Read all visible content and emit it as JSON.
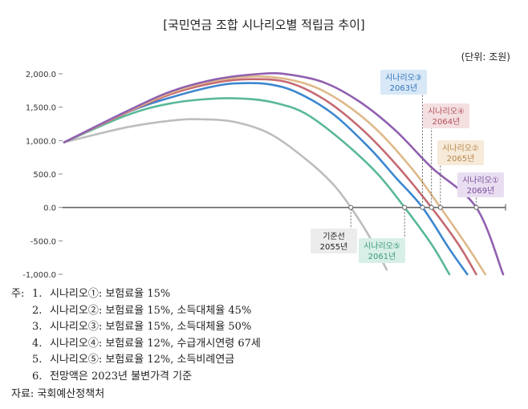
{
  "chart_data": {
    "type": "line",
    "title": "[국민연금 조합 시나리오별 적립금 추이]",
    "unit": "(단위: 조원)",
    "y_ticks": [
      "2,000.0",
      "1,500.0",
      "1,000.0",
      "500.0",
      "0.0",
      "-500.0",
      "-1,000.0"
    ],
    "ylim": [
      -1000,
      2000
    ],
    "xlim": [
      2023,
      2072
    ],
    "grid": false,
    "legend": "none",
    "series": [
      {
        "key": "baseline",
        "color": "#bdbdbd",
        "label_lines": [
          "기준선",
          "2055년"
        ],
        "label_bg": "#ececec",
        "label_color": "#222222",
        "x": [
          2023,
          2030,
          2035,
          2038,
          2042,
          2046,
          2050,
          2053,
          2055,
          2057,
          2059
        ],
        "y": [
          975,
          1200,
          1300,
          1320,
          1280,
          1100,
          720,
          350,
          0,
          -420,
          -930
        ]
      },
      {
        "key": "scenario5",
        "color": "#5ab89a",
        "label_lines": [
          "시나리오⑤",
          "2061년"
        ],
        "label_bg": "#d7efe6",
        "label_color": "#3c9a7c",
        "x": [
          2023,
          2030,
          2035,
          2040,
          2044,
          2047,
          2050,
          2054,
          2058,
          2061,
          2064,
          2066
        ],
        "y": [
          975,
          1380,
          1560,
          1630,
          1620,
          1550,
          1400,
          1000,
          500,
          0,
          -550,
          -1000
        ]
      },
      {
        "key": "scenario3",
        "color": "#3d87cf",
        "label_lines": [
          "시나리오③",
          "2063년"
        ],
        "label_bg": "#d8e8f7",
        "label_color": "#2f72b8",
        "x": [
          2023,
          2030,
          2035,
          2040,
          2043,
          2046,
          2049,
          2053,
          2057,
          2060,
          2063,
          2066,
          2068
        ],
        "y": [
          975,
          1420,
          1650,
          1820,
          1860,
          1840,
          1720,
          1400,
          900,
          450,
          0,
          -620,
          -1000
        ]
      },
      {
        "key": "scenario4",
        "color": "#c46a72",
        "label_lines": [
          "시나리오④",
          "2064년"
        ],
        "label_bg": "#f4dfe1",
        "label_color": "#b2515b",
        "x": [
          2023,
          2030,
          2035,
          2040,
          2044,
          2048,
          2052,
          2056,
          2060,
          2064,
          2067,
          2069
        ],
        "y": [
          975,
          1420,
          1700,
          1870,
          1920,
          1870,
          1620,
          1200,
          650,
          0,
          -550,
          -1000
        ]
      },
      {
        "key": "scenario2",
        "color": "#deb98a",
        "label_lines": [
          "시나리오②",
          "2065년"
        ],
        "label_bg": "#f6ead9",
        "label_color": "#b7864a",
        "x": [
          2023,
          2030,
          2035,
          2040,
          2045,
          2050,
          2054,
          2058,
          2062,
          2065,
          2068,
          2070
        ],
        "y": [
          975,
          1430,
          1720,
          1900,
          1960,
          1850,
          1580,
          1150,
          550,
          0,
          -580,
          -1000
        ]
      },
      {
        "key": "scenario1",
        "color": "#9060b0",
        "label_lines": [
          "시나리오①",
          "2069년"
        ],
        "label_bg": "#e9def1",
        "label_color": "#7a4c9c",
        "x": [
          2023,
          2030,
          2035,
          2040,
          2045,
          2048,
          2052,
          2056,
          2060,
          2064,
          2069,
          2072
        ],
        "y": [
          975,
          1440,
          1740,
          1920,
          2000,
          1990,
          1870,
          1580,
          1150,
          600,
          0,
          -1000
        ]
      }
    ]
  },
  "notes": {
    "prefix": "주:",
    "items": [
      {
        "num": "1.",
        "text": "시나리오①: 보험료율 15%"
      },
      {
        "num": "2.",
        "text": "시나리오②: 보험료율 15%,  소득대체율 45%"
      },
      {
        "num": "3.",
        "text": "시나리오③: 보험료율 15%,  소득대체율 50%"
      },
      {
        "num": "4.",
        "text": "시나리오④: 보험료율 12%,  수급개시연령 67세"
      },
      {
        "num": "5.",
        "text": "시나리오⑤: 보험료율 12%,  소득비례연금"
      },
      {
        "num": "6.",
        "text": "전망액은 2023년 불변가격 기준"
      }
    ],
    "source": "자료: 국회예산정책처"
  }
}
